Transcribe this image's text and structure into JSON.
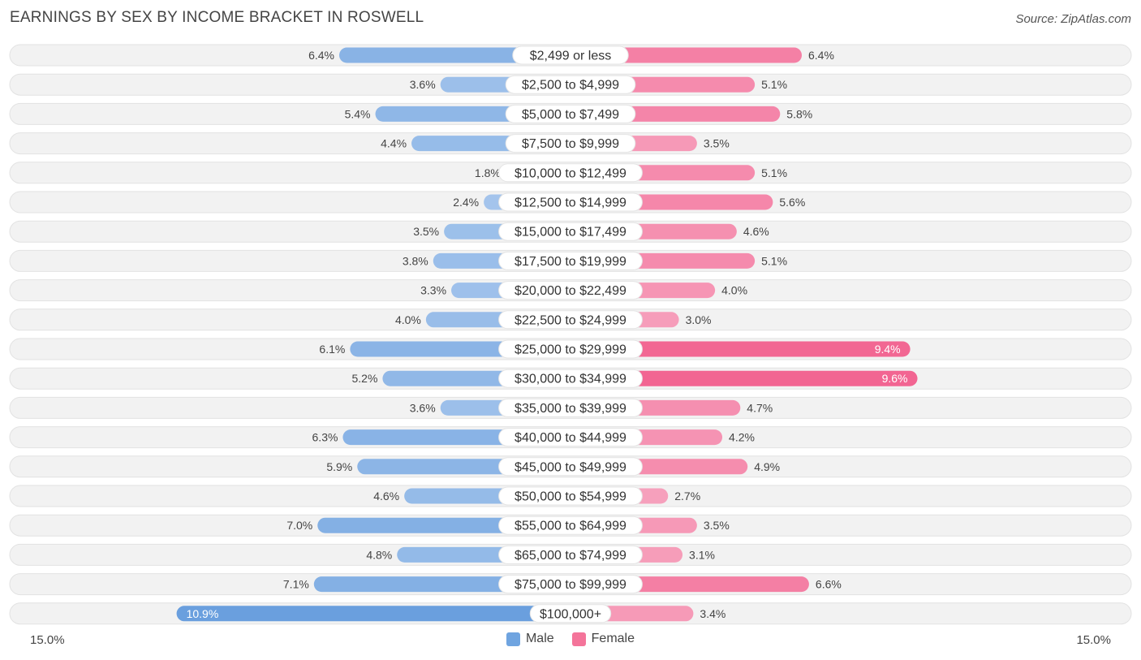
{
  "title": "EARNINGS BY SEX BY INCOME BRACKET IN ROSWELL",
  "source": "Source: ZipAtlas.com",
  "colors": {
    "male": "#6fa4e0",
    "female": "#f4749a",
    "row_bg": "#f0f0f0"
  },
  "chart_data": {
    "type": "bar",
    "orientation": "horizontal-diverging",
    "title": "EARNINGS BY SEX BY INCOME BRACKET IN ROSWELL",
    "categories": [
      "$2,499 or less",
      "$2,500 to $4,999",
      "$5,000 to $7,499",
      "$7,500 to $9,999",
      "$10,000 to $12,499",
      "$12,500 to $14,999",
      "$15,000 to $17,499",
      "$17,500 to $19,999",
      "$20,000 to $22,499",
      "$22,500 to $24,999",
      "$25,000 to $29,999",
      "$30,000 to $34,999",
      "$35,000 to $39,999",
      "$40,000 to $44,999",
      "$45,000 to $49,999",
      "$50,000 to $54,999",
      "$55,000 to $64,999",
      "$65,000 to $74,999",
      "$75,000 to $99,999",
      "$100,000+"
    ],
    "series": [
      {
        "name": "Male",
        "values": [
          6.4,
          3.6,
          5.4,
          4.4,
          1.8,
          2.4,
          3.5,
          3.8,
          3.3,
          4.0,
          6.1,
          5.2,
          3.6,
          6.3,
          5.9,
          4.6,
          7.0,
          4.8,
          7.1,
          10.9
        ]
      },
      {
        "name": "Female",
        "values": [
          6.4,
          5.1,
          5.8,
          3.5,
          5.1,
          5.6,
          4.6,
          5.1,
          4.0,
          3.0,
          9.4,
          9.6,
          4.7,
          4.2,
          4.9,
          2.7,
          3.5,
          3.1,
          6.6,
          3.4
        ]
      }
    ],
    "value_labels": {
      "male": [
        "6.4%",
        "3.6%",
        "5.4%",
        "4.4%",
        "1.8%",
        "2.4%",
        "3.5%",
        "3.8%",
        "3.3%",
        "4.0%",
        "6.1%",
        "5.2%",
        "3.6%",
        "6.3%",
        "5.9%",
        "4.6%",
        "7.0%",
        "4.8%",
        "7.1%",
        "10.9%"
      ],
      "female": [
        "6.4%",
        "5.1%",
        "5.8%",
        "3.5%",
        "5.1%",
        "5.6%",
        "4.6%",
        "5.1%",
        "4.0%",
        "3.0%",
        "9.4%",
        "9.6%",
        "4.7%",
        "4.2%",
        "4.9%",
        "2.7%",
        "3.5%",
        "3.1%",
        "6.6%",
        "3.4%"
      ]
    },
    "xlim": [
      -15.0,
      15.0
    ],
    "axis_labels": {
      "left": "15.0%",
      "right": "15.0%"
    },
    "legend": {
      "position": "bottom-center",
      "entries": [
        "Male",
        "Female"
      ]
    },
    "units": "%"
  }
}
